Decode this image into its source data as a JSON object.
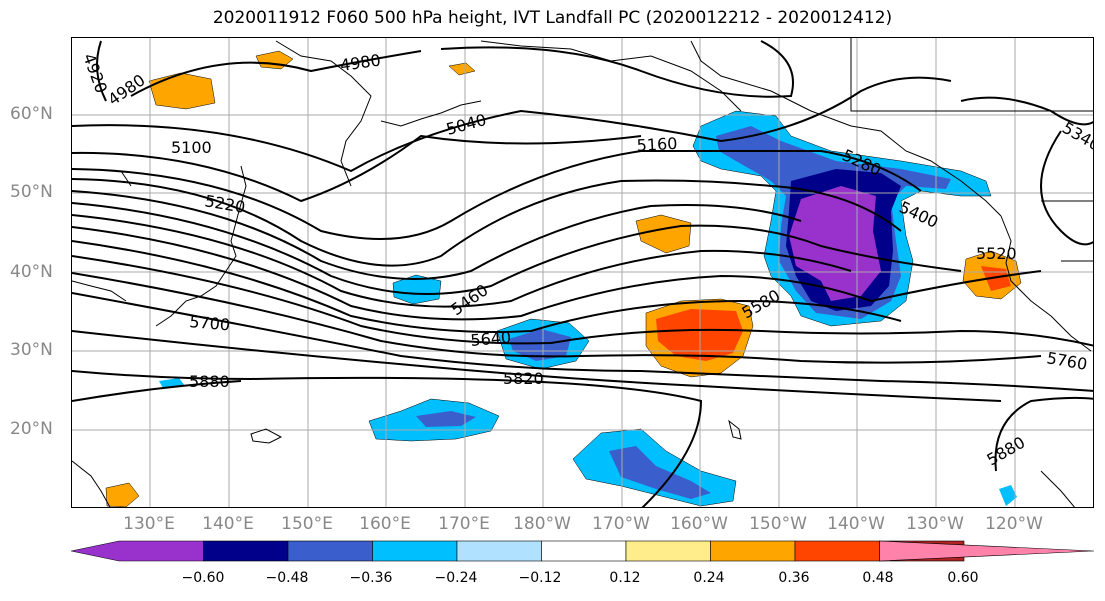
{
  "title": "2020011912 F060 500 hPa height, IVT Landfall PC (2020012212 - 2020012412)",
  "lat_labels": [
    "60°N",
    "50°N",
    "40°N",
    "30°N",
    "20°N"
  ],
  "lon_labels": [
    "130°E",
    "140°E",
    "150°E",
    "160°E",
    "170°E",
    "180°W",
    "170°W",
    "160°W",
    "150°W",
    "140°W",
    "130°W",
    "120°W"
  ],
  "contour_labels": [
    "4920",
    "4980",
    "4980",
    "5040",
    "5100",
    "5160",
    "5220",
    "5280",
    "5340",
    "5400",
    "5460",
    "5520",
    "5580",
    "5640",
    "5700",
    "5760",
    "5820",
    "5880",
    "5880"
  ],
  "colorbar": {
    "colors": [
      "#9932cc",
      "#00008b",
      "#3a5fcd",
      "#00bfff",
      "#b0e2ff",
      "#ffffff",
      "#ffec8b",
      "#ffa500",
      "#ff4500",
      "#b22222",
      "#ff82ab"
    ],
    "ticks": [
      "−0.60",
      "−0.48",
      "−0.36",
      "−0.24",
      "−0.12",
      "0.12",
      "0.24",
      "0.36",
      "0.48",
      "0.60"
    ]
  }
}
